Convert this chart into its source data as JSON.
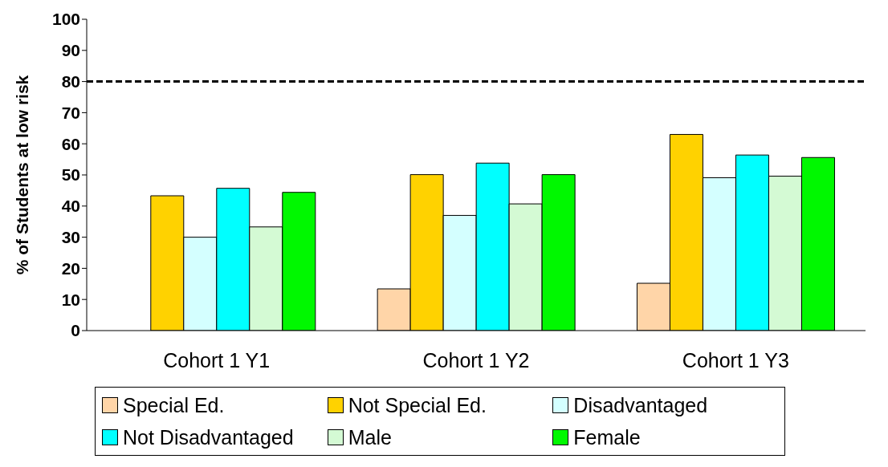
{
  "chart_data": {
    "type": "bar",
    "ylabel": "% of Students at low risk",
    "categories": [
      "Cohort 1 Y1",
      "Cohort 1 Y2",
      "Cohort 1 Y3"
    ],
    "series": [
      {
        "name": "Special Ed.",
        "color": "#ffd5a8",
        "values": [
          null,
          13.4,
          15.2
        ]
      },
      {
        "name": "Not Special Ed.",
        "color": "#ffd200",
        "values": [
          43.3,
          50.1,
          63
        ]
      },
      {
        "name": "Disadvantaged",
        "color": "#d4ffff",
        "values": [
          30,
          37,
          49.1
        ]
      },
      {
        "name": "Not Disadvantaged",
        "color": "#00ffff",
        "values": [
          45.7,
          53.8,
          56.4
        ]
      },
      {
        "name": "Male",
        "color": "#d4fad4",
        "values": [
          33.3,
          40.7,
          49.6
        ]
      },
      {
        "name": "Female",
        "color": "#00f800",
        "values": [
          44.4,
          50.1,
          55.6
        ]
      }
    ],
    "ylim": [
      0,
      100
    ],
    "yticks": [
      0,
      10,
      20,
      30,
      40,
      50,
      60,
      70,
      80,
      90,
      100
    ],
    "grid": false,
    "legend": "bottom",
    "ref_lines": [
      {
        "axis": "y",
        "value": 80,
        "color": "#000000",
        "line_style": "dashed"
      }
    ]
  }
}
